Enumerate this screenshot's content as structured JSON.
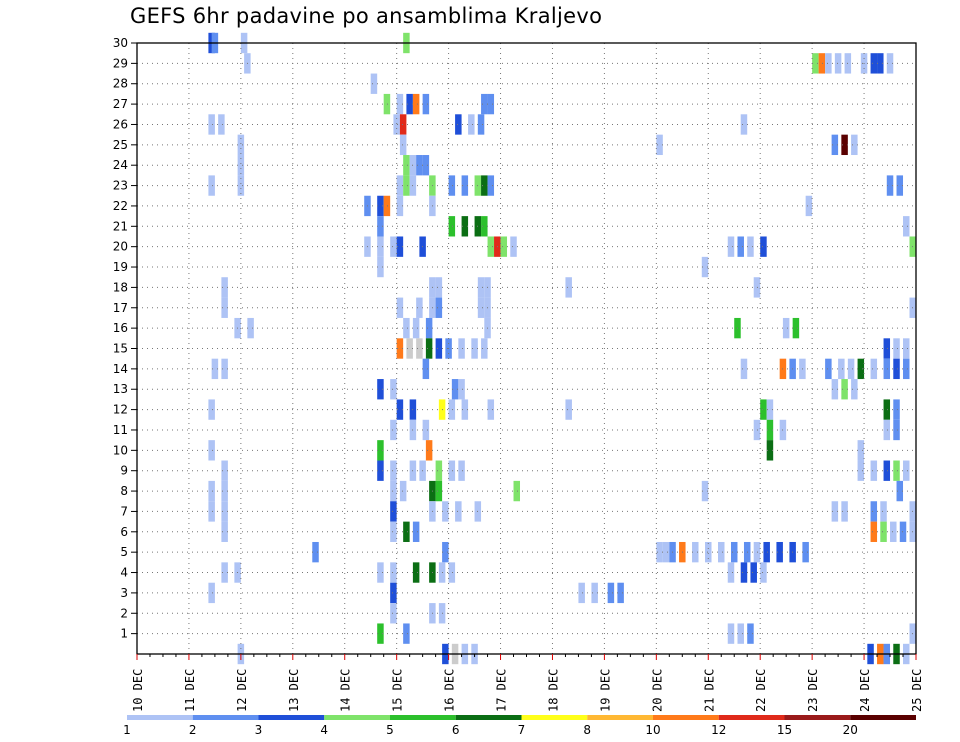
{
  "chart_data": {
    "type": "heatmap",
    "title": "GEFS 6hr padavine po ansamblima Kraljevo",
    "xlabel": "",
    "ylabel": "",
    "y_tick_labels": [
      "1",
      "2",
      "3",
      "4",
      "5",
      "6",
      "7",
      "8",
      "9",
      "10",
      "11",
      "12",
      "13",
      "14",
      "15",
      "16",
      "17",
      "18",
      "19",
      "20",
      "21",
      "22",
      "23",
      "24",
      "25",
      "26",
      "27",
      "28",
      "29",
      "30"
    ],
    "x_tick_labels": [
      "10 DEC",
      "11 DEC",
      "12 DEC",
      "13 DEC",
      "14 DEC",
      "15 DEC",
      "16 DEC",
      "17 DEC",
      "18 DEC",
      "19 DEC",
      "20 DEC",
      "21 DEC",
      "22 DEC",
      "23 DEC",
      "24 DEC",
      "25 DEC"
    ],
    "x_step": "6hr",
    "x_unit": "6-hour step index from 10 DEC 00UTC",
    "x_range": [
      0,
      60
    ],
    "y_range": [
      0,
      30
    ],
    "grid": true,
    "colorbar": {
      "labels": [
        "1",
        "2",
        "3",
        "4",
        "5",
        "6",
        "7",
        "8",
        "10",
        "12",
        "15",
        "20"
      ],
      "colors": [
        "#aec3f5",
        "#5f8ff0",
        "#1f4fd8",
        "#7fe36a",
        "#2cc02c",
        "#0b6e14",
        "#ffff1a",
        "#ffb833",
        "#ff7a1a",
        "#e02a1a",
        "#9a1a1a",
        "#5a0000"
      ]
    },
    "cells": [
      [
        5.75,
        30,
        3
      ],
      [
        8.25,
        30,
        1
      ],
      [
        6,
        30,
        2
      ],
      [
        20.75,
        30,
        4
      ],
      [
        8.5,
        29,
        1
      ],
      [
        52.25,
        29,
        4
      ],
      [
        52.75,
        29,
        9
      ],
      [
        53.25,
        29,
        1
      ],
      [
        54,
        29,
        1
      ],
      [
        54.75,
        29,
        1
      ],
      [
        56,
        29,
        1
      ],
      [
        56.75,
        29,
        3
      ],
      [
        57.25,
        29,
        3
      ],
      [
        58,
        29,
        1
      ],
      [
        18.25,
        28,
        1
      ],
      [
        19.25,
        27,
        4
      ],
      [
        20.25,
        27,
        1
      ],
      [
        21,
        27,
        3
      ],
      [
        21.5,
        27,
        9
      ],
      [
        22.25,
        27,
        2
      ],
      [
        26.75,
        27,
        2
      ],
      [
        27.25,
        27,
        2
      ],
      [
        5.75,
        26,
        1
      ],
      [
        6.5,
        26,
        1
      ],
      [
        20,
        26,
        1
      ],
      [
        20.5,
        26,
        10
      ],
      [
        24.75,
        26,
        3
      ],
      [
        25.75,
        26,
        1
      ],
      [
        26.5,
        26,
        2
      ],
      [
        46.75,
        26,
        1
      ],
      [
        8,
        25,
        1
      ],
      [
        20.5,
        25,
        1
      ],
      [
        40.25,
        25,
        1
      ],
      [
        53.75,
        25,
        2
      ],
      [
        54.5,
        25,
        12
      ],
      [
        55.25,
        25,
        1
      ],
      [
        8,
        24,
        1
      ],
      [
        20.75,
        24,
        4
      ],
      [
        21.25,
        24,
        1
      ],
      [
        22.25,
        24,
        2
      ],
      [
        21.75,
        24,
        2
      ],
      [
        5.75,
        23,
        1
      ],
      [
        8,
        23,
        1
      ],
      [
        20.25,
        23,
        1
      ],
      [
        20.75,
        23,
        4
      ],
      [
        21.25,
        23,
        1
      ],
      [
        22.75,
        23,
        4
      ],
      [
        24.25,
        23,
        2
      ],
      [
        25.25,
        23,
        2
      ],
      [
        26.25,
        23,
        4
      ],
      [
        26.75,
        23,
        6
      ],
      [
        27.25,
        23,
        2
      ],
      [
        58,
        23,
        2
      ],
      [
        58.75,
        23,
        2
      ],
      [
        17.75,
        22,
        2
      ],
      [
        18.75,
        22,
        3
      ],
      [
        19.25,
        22,
        9
      ],
      [
        20.25,
        22,
        1
      ],
      [
        22.75,
        22,
        1
      ],
      [
        51.75,
        22,
        1
      ],
      [
        18.75,
        21,
        2
      ],
      [
        24.25,
        21,
        5
      ],
      [
        25.25,
        21,
        6
      ],
      [
        26.25,
        21,
        6
      ],
      [
        26.75,
        21,
        5
      ],
      [
        59.25,
        21,
        1
      ],
      [
        17.75,
        20,
        1
      ],
      [
        18.75,
        20,
        1
      ],
      [
        19.75,
        20,
        1
      ],
      [
        20.25,
        20,
        3
      ],
      [
        22,
        20,
        3
      ],
      [
        27.25,
        20,
        4
      ],
      [
        27.75,
        20,
        10
      ],
      [
        28.25,
        20,
        4
      ],
      [
        29,
        20,
        1
      ],
      [
        45.75,
        20,
        1
      ],
      [
        46.5,
        20,
        2
      ],
      [
        47.25,
        20,
        1
      ],
      [
        48.25,
        20,
        3
      ],
      [
        59.75,
        20,
        4
      ],
      [
        18.75,
        19,
        1
      ],
      [
        43.75,
        19,
        1
      ],
      [
        6.75,
        18,
        1
      ],
      [
        22.75,
        18,
        1
      ],
      [
        23.25,
        18,
        1
      ],
      [
        26.5,
        18,
        1
      ],
      [
        27,
        18,
        1
      ],
      [
        33.25,
        18,
        1
      ],
      [
        47.75,
        18,
        1
      ],
      [
        6.75,
        17,
        1
      ],
      [
        20.25,
        17,
        1
      ],
      [
        21.75,
        17,
        1
      ],
      [
        22.75,
        17,
        1
      ],
      [
        23.25,
        17,
        2
      ],
      [
        26.5,
        17,
        1
      ],
      [
        27,
        17,
        1
      ],
      [
        59.75,
        17,
        1
      ],
      [
        7.75,
        16,
        1
      ],
      [
        8.75,
        16,
        1
      ],
      [
        20.75,
        16,
        1
      ],
      [
        21.5,
        16,
        1
      ],
      [
        22.5,
        16,
        2
      ],
      [
        27,
        16,
        1
      ],
      [
        46.25,
        16,
        5
      ],
      [
        50,
        16,
        1
      ],
      [
        50.75,
        16,
        5
      ],
      [
        20.25,
        15,
        9
      ],
      [
        21,
        15,
        13
      ],
      [
        21.75,
        15,
        15
      ],
      [
        22.5,
        15,
        6
      ],
      [
        23.25,
        15,
        3
      ],
      [
        24,
        15,
        2
      ],
      [
        25,
        15,
        1
      ],
      [
        26,
        15,
        1
      ],
      [
        26.75,
        15,
        1
      ],
      [
        57.75,
        15,
        3
      ],
      [
        58.5,
        15,
        1
      ],
      [
        59.25,
        15,
        1
      ],
      [
        6,
        14,
        1
      ],
      [
        6.75,
        14,
        1
      ],
      [
        22.25,
        14,
        2
      ],
      [
        46.75,
        14,
        1
      ],
      [
        49.75,
        14,
        9
      ],
      [
        50.5,
        14,
        2
      ],
      [
        51.25,
        14,
        1
      ],
      [
        53.25,
        14,
        2
      ],
      [
        54.25,
        14,
        1
      ],
      [
        55,
        14,
        1
      ],
      [
        55.75,
        14,
        6
      ],
      [
        56.75,
        14,
        1
      ],
      [
        57.75,
        14,
        2
      ],
      [
        58.5,
        14,
        3
      ],
      [
        59.25,
        14,
        2
      ],
      [
        18.75,
        13,
        3
      ],
      [
        19.75,
        13,
        1
      ],
      [
        24.5,
        13,
        2
      ],
      [
        25,
        13,
        1
      ],
      [
        53.75,
        13,
        1
      ],
      [
        54.5,
        13,
        4
      ],
      [
        55.25,
        13,
        1
      ],
      [
        5.75,
        12,
        1
      ],
      [
        20.25,
        12,
        3
      ],
      [
        21.25,
        12,
        3
      ],
      [
        23.5,
        12,
        7
      ],
      [
        24.25,
        12,
        1
      ],
      [
        25.25,
        12,
        1
      ],
      [
        27.25,
        12,
        1
      ],
      [
        33.25,
        12,
        1
      ],
      [
        48.25,
        12,
        5
      ],
      [
        48.75,
        12,
        1
      ],
      [
        57.75,
        12,
        6
      ],
      [
        58.5,
        12,
        2
      ],
      [
        19.75,
        11,
        1
      ],
      [
        21.25,
        11,
        1
      ],
      [
        22.25,
        11,
        1
      ],
      [
        47.75,
        11,
        1
      ],
      [
        48.75,
        11,
        5
      ],
      [
        49.75,
        11,
        1
      ],
      [
        57.75,
        11,
        1
      ],
      [
        58.5,
        11,
        2
      ],
      [
        5.75,
        10,
        1
      ],
      [
        18.75,
        10,
        5
      ],
      [
        22.5,
        10,
        9
      ],
      [
        48.75,
        10,
        6
      ],
      [
        55.75,
        10,
        1
      ],
      [
        6.75,
        9,
        1
      ],
      [
        18.75,
        9,
        3
      ],
      [
        19.75,
        9,
        1
      ],
      [
        21.25,
        9,
        1
      ],
      [
        22,
        9,
        1
      ],
      [
        23.25,
        9,
        4
      ],
      [
        24.25,
        9,
        1
      ],
      [
        25,
        9,
        1
      ],
      [
        55.75,
        9,
        1
      ],
      [
        56.75,
        9,
        1
      ],
      [
        57.75,
        9,
        3
      ],
      [
        58.5,
        9,
        4
      ],
      [
        59.25,
        9,
        1
      ],
      [
        5.75,
        8,
        1
      ],
      [
        6.75,
        8,
        1
      ],
      [
        19.75,
        8,
        1
      ],
      [
        20.5,
        8,
        1
      ],
      [
        22.75,
        8,
        6
      ],
      [
        23.25,
        8,
        5
      ],
      [
        29.25,
        8,
        4
      ],
      [
        43.75,
        8,
        1
      ],
      [
        58.75,
        8,
        2
      ],
      [
        5.75,
        7,
        1
      ],
      [
        6.75,
        7,
        1
      ],
      [
        19.75,
        7,
        3
      ],
      [
        22.75,
        7,
        1
      ],
      [
        23.75,
        7,
        1
      ],
      [
        24.75,
        7,
        1
      ],
      [
        26.25,
        7,
        1
      ],
      [
        53.75,
        7,
        1
      ],
      [
        54.5,
        7,
        1
      ],
      [
        56.75,
        7,
        2
      ],
      [
        57.5,
        7,
        1
      ],
      [
        59.75,
        7,
        1
      ],
      [
        6.75,
        6,
        1
      ],
      [
        19.75,
        6,
        1
      ],
      [
        20.75,
        6,
        6
      ],
      [
        21.5,
        6,
        2
      ],
      [
        56.75,
        6,
        9
      ],
      [
        57.5,
        6,
        4
      ],
      [
        58.25,
        6,
        1
      ],
      [
        59,
        6,
        2
      ],
      [
        59.75,
        6,
        1
      ],
      [
        13.75,
        5,
        2
      ],
      [
        23.75,
        5,
        2
      ],
      [
        40.25,
        5,
        1
      ],
      [
        40.75,
        5,
        1
      ],
      [
        41.25,
        5,
        2
      ],
      [
        42,
        5,
        9
      ],
      [
        43,
        5,
        1
      ],
      [
        44,
        5,
        1
      ],
      [
        45,
        5,
        1
      ],
      [
        46,
        5,
        2
      ],
      [
        47,
        5,
        2
      ],
      [
        47.75,
        5,
        1
      ],
      [
        48.5,
        5,
        3
      ],
      [
        49.5,
        5,
        3
      ],
      [
        50.5,
        5,
        3
      ],
      [
        51.5,
        5,
        2
      ],
      [
        6.75,
        4,
        1
      ],
      [
        7.75,
        4,
        1
      ],
      [
        18.75,
        4,
        1
      ],
      [
        19.75,
        4,
        1
      ],
      [
        21.5,
        4,
        6
      ],
      [
        22.75,
        4,
        6
      ],
      [
        23.5,
        4,
        1
      ],
      [
        24.25,
        4,
        1
      ],
      [
        45.75,
        4,
        1
      ],
      [
        46.75,
        4,
        3
      ],
      [
        47.5,
        4,
        3
      ],
      [
        48.25,
        4,
        1
      ],
      [
        5.75,
        3,
        1
      ],
      [
        19.75,
        3,
        3
      ],
      [
        34.25,
        3,
        1
      ],
      [
        35.25,
        3,
        1
      ],
      [
        36.5,
        3,
        2
      ],
      [
        37.25,
        3,
        2
      ],
      [
        19.75,
        2,
        1
      ],
      [
        22.75,
        2,
        1
      ],
      [
        23.5,
        2,
        1
      ],
      [
        18.75,
        1,
        5
      ],
      [
        20.75,
        1,
        2
      ],
      [
        45.75,
        1,
        1
      ],
      [
        46.5,
        1,
        1
      ],
      [
        47.25,
        1,
        2
      ],
      [
        59.75,
        1,
        1
      ],
      [
        8,
        0,
        1
      ],
      [
        23.75,
        0,
        3
      ],
      [
        24.5,
        0,
        13
      ],
      [
        25.25,
        0,
        1
      ],
      [
        26,
        0,
        1
      ],
      [
        56.5,
        0,
        3
      ],
      [
        57.25,
        0,
        9
      ],
      [
        57.75,
        0,
        2
      ],
      [
        58.5,
        0,
        6
      ],
      [
        59.25,
        0,
        1
      ]
    ]
  }
}
